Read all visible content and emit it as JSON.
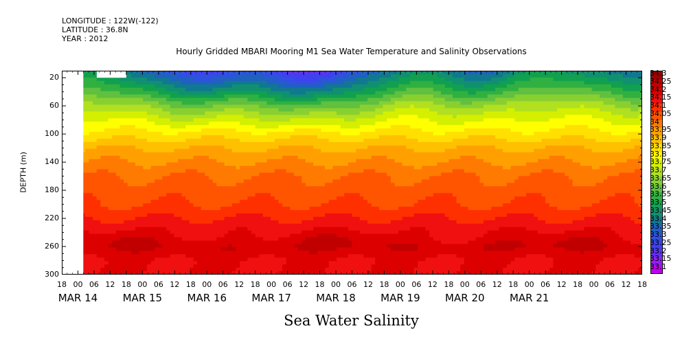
{
  "meta": {
    "longitude": "LONGITUDE : 122W(-122)",
    "latitude": "LATITUDE : 36.8N",
    "year": "YEAR : 2012"
  },
  "chart_data": {
    "type": "heatmap",
    "title": "Hourly Gridded MBARI Mooring M1 Sea Water Temperature and Salinity Observations",
    "variable_title": "Sea Water Salinity",
    "ylabel": "DEPTH (m)",
    "xlabel": "",
    "y_inverted": true,
    "ylim": [
      10,
      300
    ],
    "y_ticks": [
      "20",
      "60",
      "100",
      "140",
      "180",
      "220",
      "260",
      "300"
    ],
    "y_tick_values": [
      20,
      60,
      100,
      140,
      180,
      220,
      260,
      300
    ],
    "x_hour_ticks": [
      "18",
      "00",
      "06",
      "12",
      "18",
      "00",
      "06",
      "12",
      "18",
      "00",
      "06",
      "12",
      "18",
      "00",
      "06",
      "12",
      "18",
      "00",
      "06",
      "12",
      "18",
      "00",
      "06",
      "12",
      "18",
      "00",
      "06",
      "12",
      "18",
      "00",
      "06",
      "12",
      "18",
      "00",
      "06",
      "12",
      "18"
    ],
    "x_date_labels": [
      "MAR 14",
      "MAR 15",
      "MAR 16",
      "MAR 17",
      "MAR 18",
      "MAR 19",
      "MAR 20",
      "MAR 21"
    ],
    "x_range_hours": [
      "2012-03-13T18:00",
      "2012-03-22T18:00"
    ],
    "missing_data": [
      {
        "from": "2012-03-13T18:00",
        "to": "2012-03-14T02:00",
        "depth": [
          10,
          300
        ]
      },
      {
        "from": "2012-03-14T07:00",
        "to": "2012-03-14T18:00",
        "depth": [
          10,
          20
        ]
      }
    ],
    "legend": {
      "position": "right",
      "levels": [
        "34.3",
        "34.25",
        "34.2",
        "34.15",
        "34.1",
        "34.05",
        "34",
        "33.95",
        "33.9",
        "33.85",
        "33.8",
        "33.75",
        "33.7",
        "33.65",
        "33.6",
        "33.55",
        "33.5",
        "33.45",
        "33.4",
        "33.35",
        "33.3",
        "33.25",
        "33.2",
        "33.15",
        "33.1"
      ],
      "colors": [
        "#a00000",
        "#c00000",
        "#dd0000",
        "#f01010",
        "#ff3000",
        "#ff5500",
        "#ff7a00",
        "#ffa000",
        "#ffc000",
        "#ffe000",
        "#ffff00",
        "#d4f000",
        "#b0e020",
        "#88d030",
        "#60c040",
        "#30b040",
        "#10a050",
        "#109070",
        "#107890",
        "#2060c0",
        "#3050e0",
        "#4040f0",
        "#6030f0",
        "#9020f0",
        "#c000f0"
      ]
    },
    "depth_profile_typical": {
      "depths": [
        10,
        20,
        40,
        60,
        80,
        100,
        120,
        140,
        160,
        200,
        220,
        240,
        260,
        280,
        300
      ],
      "salinity": [
        33.45,
        33.5,
        33.6,
        33.72,
        33.8,
        33.87,
        33.95,
        34.0,
        34.05,
        34.1,
        34.15,
        34.2,
        34.25,
        34.2,
        34.2
      ]
    }
  }
}
